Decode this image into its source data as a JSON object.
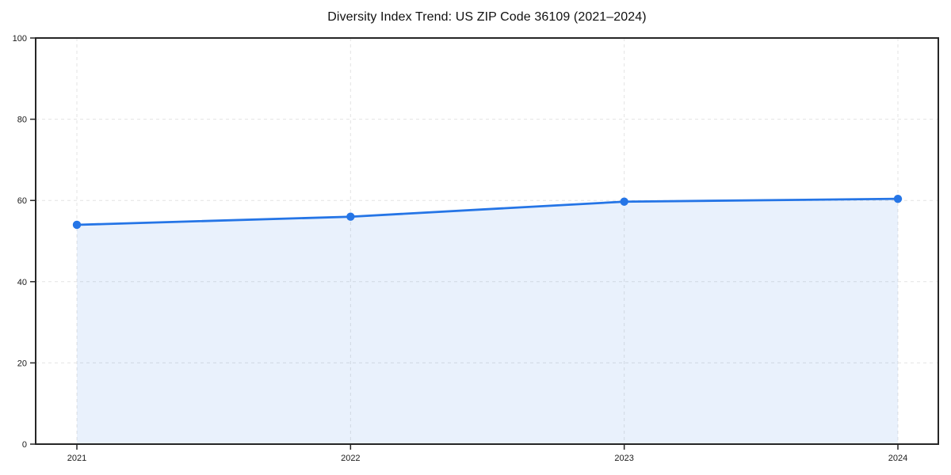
{
  "page": {
    "background_color": "#ffffff"
  },
  "chart_data": {
    "type": "line",
    "title": "Diversity Index Trend: US ZIP Code 36109 (2021–2024)",
    "x": [
      "2021",
      "2022",
      "2023",
      "2024"
    ],
    "series": [
      {
        "name": "Diversity Index",
        "values": [
          54,
          56,
          59.7,
          60.4
        ]
      }
    ],
    "xlabel": "",
    "ylabel": "",
    "ylim": [
      0,
      100
    ],
    "yticks": [
      0,
      20,
      40,
      60,
      80,
      100
    ],
    "grid": true,
    "grid_style": "dashed",
    "legend": false,
    "marker": "circle",
    "area_fill": true,
    "colors": {
      "line": "#2575e6",
      "marker": "#2575e6",
      "area_fill": "rgba(37,117,230,0.10)",
      "area_fill_approx_hex": "#e9f1fb",
      "gridline": "#e3e3e3",
      "spine": "#262626",
      "tick_label": "#1a1a1a",
      "title": "#111111"
    }
  }
}
